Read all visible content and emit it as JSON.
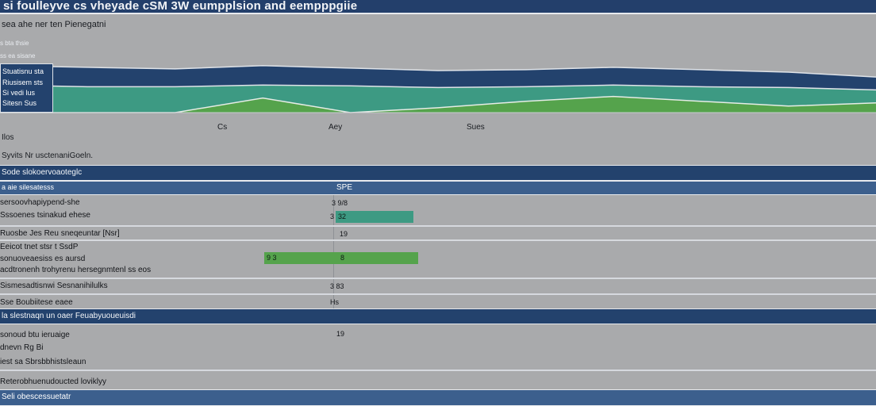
{
  "app": {
    "title": "si foulleyve cs vheyade cSM 3W eumpplsion and eempppgiie",
    "subtitle": "sea ahe ner ten Pienegatni"
  },
  "colors": {
    "navy": "#23426d",
    "teal": "#3d9a83",
    "green": "#55a34c",
    "bg": "#a9aaac"
  },
  "chart": {
    "legend": [
      "s bta thsie",
      "ss ea sisane"
    ],
    "side_panel": [
      "Stuatisnu sta",
      "Riusisem sts",
      "Si vedi lus",
      "Sitesn Sus"
    ],
    "x_ticks": [
      "Cs",
      "Aey",
      "Sues"
    ],
    "notes": [
      "Ilos",
      "Syvits Nr usctenaniGoeln."
    ]
  },
  "chart_data": {
    "type": "area",
    "x": [
      0,
      1,
      2,
      3,
      4,
      5,
      6,
      7,
      8,
      9,
      10
    ],
    "series": [
      {
        "name": "navy",
        "values": [
          58,
          56,
          54,
          58,
          55,
          52,
          53,
          56,
          53,
          50,
          44
        ]
      },
      {
        "name": "teal",
        "values": [
          34,
          32,
          32,
          34,
          33,
          31,
          32,
          34,
          32,
          31,
          28
        ]
      },
      {
        "name": "green",
        "values": [
          0,
          0,
          0,
          18,
          0,
          6,
          14,
          20,
          14,
          8,
          12
        ]
      }
    ],
    "ylim": [
      0,
      100
    ],
    "xlabel": "",
    "ylabel": "",
    "title": ""
  },
  "section1": {
    "band_label": "Sode slokoervoaoteglc",
    "header_label": "a aie silesatesss",
    "header_value": "SPE"
  },
  "rows": [
    {
      "label": "sersoovhapiypend-she",
      "value": "3 9/8"
    },
    {
      "label": "Sssoenes tsinakud ehese",
      "value": "3",
      "bar_label": "32"
    },
    {
      "label": "Ruosbe Jes Reu sneqeuntar [Nsr]",
      "value": "19"
    },
    {
      "label": "Eeicot tnet stsr t SsdP"
    },
    {
      "label": "sonuoveaesiss es aursd",
      "bar_label": "9 3",
      "value": "8"
    },
    {
      "label": "acdtronenh trohyrenu hersegnmtenl ss eos"
    },
    {
      "label": "Sismesadtisnwi Sesnanihilulks",
      "value": "3 83"
    },
    {
      "label": "Sse Boubiitese eaee",
      "value": "Hs"
    }
  ],
  "section2": {
    "band_label": "la slestnaqn un oaer Feuabyuoueuisdi",
    "value": "19"
  },
  "rows2": [
    {
      "label": "sonoud btu ieruaige"
    },
    {
      "label": "dnevn Rg Bi"
    },
    {
      "label": "iest sa Sbrsbbhistsleaun"
    },
    {
      "label": "Reterobhuenudoucted loviklyy"
    }
  ],
  "footer": {
    "label": "Seli obescessuetatr"
  }
}
